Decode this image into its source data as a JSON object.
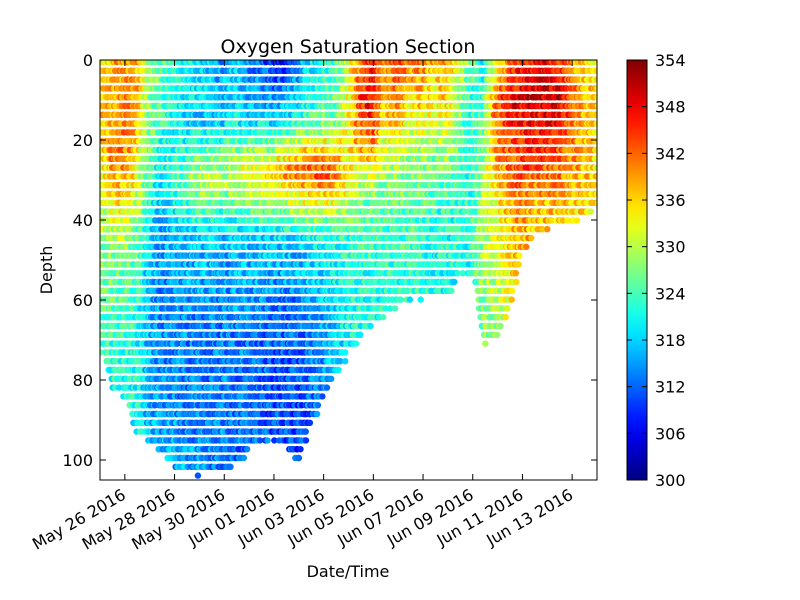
{
  "chart_data": {
    "type": "scatter",
    "title": "Oxygen Saturation Section",
    "xlabel": "Date/Time",
    "ylabel": "Depth",
    "x_axis": {
      "kind": "date",
      "range": [
        "2016-05-25",
        "2016-06-14"
      ],
      "ticks": [
        {
          "date": "2016-05-26",
          "label": "May 26 2016"
        },
        {
          "date": "2016-05-28",
          "label": "May 28 2016"
        },
        {
          "date": "2016-05-30",
          "label": "May 30 2016"
        },
        {
          "date": "2016-06-01",
          "label": "Jun 01 2016"
        },
        {
          "date": "2016-06-03",
          "label": "Jun 03 2016"
        },
        {
          "date": "2016-06-05",
          "label": "Jun 05 2016"
        },
        {
          "date": "2016-06-07",
          "label": "Jun 07 2016"
        },
        {
          "date": "2016-06-09",
          "label": "Jun 09 2016"
        },
        {
          "date": "2016-06-11",
          "label": "Jun 11 2016"
        },
        {
          "date": "2016-06-13",
          "label": "Jun 13 2016"
        }
      ]
    },
    "y_axis": {
      "inverted": true,
      "range": [
        0,
        105
      ],
      "ticks": [
        0,
        20,
        40,
        60,
        80,
        100
      ]
    },
    "colorbar": {
      "colormap": "jet",
      "range": [
        300,
        354
      ],
      "ticks": [
        300,
        306,
        312,
        318,
        324,
        330,
        336,
        342,
        348,
        354
      ]
    },
    "grid": false,
    "legend": "none",
    "profiles": [
      {
        "date": "2016-05-25T00:00",
        "max_depth": 73,
        "o2": [
          [
            0,
            334
          ],
          [
            10,
            336
          ],
          [
            20,
            335
          ],
          [
            35,
            330
          ],
          [
            55,
            326
          ],
          [
            73,
            325
          ]
        ]
      },
      {
        "date": "2016-05-25T12:00",
        "max_depth": 82,
        "o2": [
          [
            0,
            338
          ],
          [
            10,
            338
          ],
          [
            25,
            340
          ],
          [
            30,
            336
          ],
          [
            45,
            328
          ],
          [
            65,
            324
          ],
          [
            82,
            322
          ]
        ]
      },
      {
        "date": "2016-05-26T00:00",
        "max_depth": 85,
        "o2": [
          [
            0,
            339
          ],
          [
            10,
            340
          ],
          [
            25,
            341
          ],
          [
            35,
            336
          ],
          [
            50,
            326
          ],
          [
            70,
            323
          ],
          [
            85,
            322
          ]
        ]
      },
      {
        "date": "2016-05-26T12:00",
        "max_depth": 93,
        "o2": [
          [
            0,
            338
          ],
          [
            10,
            339
          ],
          [
            20,
            338
          ],
          [
            30,
            333
          ],
          [
            45,
            326
          ],
          [
            70,
            322
          ],
          [
            93,
            321
          ]
        ]
      },
      {
        "date": "2016-05-27T00:00",
        "max_depth": 98,
        "o2": [
          [
            0,
            330
          ],
          [
            15,
            327
          ],
          [
            25,
            326
          ],
          [
            40,
            320
          ],
          [
            60,
            316
          ],
          [
            80,
            316
          ],
          [
            98,
            317
          ]
        ]
      },
      {
        "date": "2016-05-27T12:00",
        "max_depth": 100,
        "o2": [
          [
            0,
            326
          ],
          [
            15,
            324
          ],
          [
            25,
            320
          ],
          [
            40,
            316
          ],
          [
            60,
            314
          ],
          [
            80,
            314
          ],
          [
            100,
            316
          ]
        ]
      },
      {
        "date": "2016-05-28T00:00",
        "max_depth": 102,
        "o2": [
          [
            0,
            324
          ],
          [
            15,
            320
          ],
          [
            30,
            324
          ],
          [
            45,
            316
          ],
          [
            65,
            314
          ],
          [
            85,
            314
          ],
          [
            102,
            316
          ]
        ]
      },
      {
        "date": "2016-05-28T12:00",
        "max_depth": 104,
        "o2": [
          [
            0,
            322
          ],
          [
            15,
            318
          ],
          [
            30,
            326
          ],
          [
            45,
            316
          ],
          [
            65,
            314
          ],
          [
            85,
            313
          ],
          [
            104,
            316
          ]
        ]
      },
      {
        "date": "2016-05-29T00:00",
        "max_depth": 104,
        "o2": [
          [
            0,
            320
          ],
          [
            15,
            318
          ],
          [
            30,
            330
          ],
          [
            45,
            318
          ],
          [
            65,
            314
          ],
          [
            85,
            313
          ],
          [
            104,
            315
          ]
        ]
      },
      {
        "date": "2016-05-29T12:00",
        "max_depth": 104,
        "o2": [
          [
            0,
            318
          ],
          [
            15,
            318
          ],
          [
            30,
            332
          ],
          [
            45,
            318
          ],
          [
            65,
            313
          ],
          [
            85,
            313
          ],
          [
            104,
            314
          ]
        ]
      },
      {
        "date": "2016-05-30T00:00",
        "max_depth": 104,
        "o2": [
          [
            0,
            314
          ],
          [
            15,
            318
          ],
          [
            30,
            330
          ],
          [
            45,
            316
          ],
          [
            65,
            314
          ],
          [
            85,
            313
          ],
          [
            104,
            314
          ]
        ]
      },
      {
        "date": "2016-05-30T12:00",
        "max_depth": 102,
        "o2": [
          [
            0,
            318
          ],
          [
            15,
            320
          ],
          [
            28,
            332
          ],
          [
            45,
            318
          ],
          [
            65,
            314
          ],
          [
            85,
            313
          ],
          [
            102,
            313
          ]
        ]
      },
      {
        "date": "2016-05-31T00:00",
        "max_depth": 98,
        "o2": [
          [
            0,
            314
          ],
          [
            15,
            318
          ],
          [
            28,
            334
          ],
          [
            45,
            318
          ],
          [
            65,
            314
          ],
          [
            85,
            312
          ],
          [
            98,
            312
          ]
        ]
      },
      {
        "date": "2016-05-31T12:00",
        "max_depth": 97,
        "o2": [
          [
            0,
            312
          ],
          [
            15,
            318
          ],
          [
            28,
            336
          ],
          [
            45,
            318
          ],
          [
            65,
            313
          ],
          [
            85,
            312
          ],
          [
            97,
            312
          ]
        ]
      },
      {
        "date": "2016-06-01T00:00",
        "max_depth": 96,
        "o2": [
          [
            0,
            308
          ],
          [
            15,
            318
          ],
          [
            28,
            336
          ],
          [
            45,
            318
          ],
          [
            65,
            312
          ],
          [
            85,
            311
          ],
          [
            96,
            311
          ]
        ]
      },
      {
        "date": "2016-06-01T12:00",
        "max_depth": 98,
        "o2": [
          [
            0,
            308
          ],
          [
            15,
            320
          ],
          [
            28,
            340
          ],
          [
            45,
            318
          ],
          [
            65,
            312
          ],
          [
            85,
            311
          ],
          [
            98,
            310
          ]
        ]
      },
      {
        "date": "2016-06-02T00:00",
        "max_depth": 102,
        "o2": [
          [
            0,
            312
          ],
          [
            15,
            322
          ],
          [
            28,
            342
          ],
          [
            45,
            318
          ],
          [
            65,
            312
          ],
          [
            85,
            311
          ],
          [
            102,
            309
          ]
        ]
      },
      {
        "date": "2016-06-02T12:00",
        "max_depth": 92,
        "o2": [
          [
            0,
            318
          ],
          [
            15,
            324
          ],
          [
            28,
            344
          ],
          [
            45,
            320
          ],
          [
            65,
            314
          ],
          [
            92,
            312
          ]
        ]
      },
      {
        "date": "2016-06-03T00:00",
        "max_depth": 86,
        "o2": [
          [
            0,
            320
          ],
          [
            15,
            326
          ],
          [
            28,
            344
          ],
          [
            45,
            320
          ],
          [
            65,
            316
          ],
          [
            86,
            314
          ]
        ]
      },
      {
        "date": "2016-06-03T12:00",
        "max_depth": 80,
        "o2": [
          [
            0,
            324
          ],
          [
            15,
            326
          ],
          [
            28,
            342
          ],
          [
            45,
            322
          ],
          [
            65,
            318
          ],
          [
            80,
            316
          ]
        ]
      },
      {
        "date": "2016-06-04T00:00",
        "max_depth": 74,
        "o2": [
          [
            0,
            330
          ],
          [
            15,
            332
          ],
          [
            30,
            336
          ],
          [
            45,
            322
          ],
          [
            74,
            320
          ]
        ]
      },
      {
        "date": "2016-06-04T12:00",
        "max_depth": 70,
        "o2": [
          [
            0,
            340
          ],
          [
            10,
            344
          ],
          [
            20,
            340
          ],
          [
            35,
            326
          ],
          [
            55,
            322
          ],
          [
            70,
            322
          ]
        ]
      },
      {
        "date": "2016-06-05T00:00",
        "max_depth": 68,
        "o2": [
          [
            0,
            346
          ],
          [
            10,
            348
          ],
          [
            20,
            342
          ],
          [
            35,
            326
          ],
          [
            55,
            322
          ],
          [
            68,
            322
          ]
        ]
      },
      {
        "date": "2016-06-05T12:00",
        "max_depth": 64,
        "o2": [
          [
            0,
            340
          ],
          [
            12,
            336
          ],
          [
            25,
            330
          ],
          [
            40,
            324
          ],
          [
            64,
            322
          ]
        ]
      },
      {
        "date": "2016-06-06T00:00",
        "max_depth": 62,
        "o2": [
          [
            0,
            344
          ],
          [
            12,
            340
          ],
          [
            25,
            330
          ],
          [
            40,
            324
          ],
          [
            62,
            322
          ]
        ]
      },
      {
        "date": "2016-06-06T12:00",
        "max_depth": 60,
        "o2": [
          [
            0,
            340
          ],
          [
            12,
            334
          ],
          [
            25,
            328
          ],
          [
            40,
            324
          ],
          [
            60,
            322
          ]
        ]
      },
      {
        "date": "2016-06-07T00:00",
        "max_depth": 60,
        "o2": [
          [
            0,
            342
          ],
          [
            12,
            336
          ],
          [
            25,
            328
          ],
          [
            40,
            324
          ],
          [
            60,
            322
          ]
        ]
      },
      {
        "date": "2016-06-07T12:00",
        "max_depth": 60,
        "o2": [
          [
            0,
            336
          ],
          [
            12,
            332
          ],
          [
            25,
            326
          ],
          [
            40,
            322
          ],
          [
            60,
            321
          ]
        ]
      },
      {
        "date": "2016-06-08T00:00",
        "max_depth": 60,
        "o2": [
          [
            0,
            340
          ],
          [
            12,
            336
          ],
          [
            25,
            328
          ],
          [
            40,
            322
          ],
          [
            60,
            321
          ]
        ]
      },
      {
        "date": "2016-06-08T12:00",
        "max_depth": 54,
        "o2": [
          [
            0,
            332
          ],
          [
            12,
            328
          ],
          [
            25,
            325
          ],
          [
            40,
            322
          ],
          [
            54,
            322
          ]
        ]
      },
      {
        "date": "2016-06-09T00:00",
        "max_depth": 54,
        "o2": [
          [
            0,
            326
          ],
          [
            12,
            322
          ],
          [
            25,
            322
          ],
          [
            40,
            322
          ],
          [
            54,
            322
          ]
        ]
      },
      {
        "date": "2016-06-09T12:00",
        "max_depth": 72,
        "o2": [
          [
            0,
            320
          ],
          [
            12,
            324
          ],
          [
            25,
            328
          ],
          [
            40,
            330
          ],
          [
            55,
            328
          ],
          [
            72,
            326
          ]
        ]
      },
      {
        "date": "2016-06-10T00:00",
        "max_depth": 70,
        "o2": [
          [
            0,
            330
          ],
          [
            10,
            344
          ],
          [
            25,
            338
          ],
          [
            40,
            332
          ],
          [
            55,
            330
          ],
          [
            70,
            328
          ]
        ]
      },
      {
        "date": "2016-06-10T12:00",
        "max_depth": 64,
        "o2": [
          [
            0,
            340
          ],
          [
            10,
            348
          ],
          [
            25,
            342
          ],
          [
            40,
            336
          ],
          [
            55,
            334
          ],
          [
            64,
            332
          ]
        ]
      },
      {
        "date": "2016-06-11T00:00",
        "max_depth": 50,
        "o2": [
          [
            0,
            346
          ],
          [
            10,
            348
          ],
          [
            25,
            344
          ],
          [
            40,
            340
          ],
          [
            50,
            338
          ]
        ]
      },
      {
        "date": "2016-06-11T12:00",
        "max_depth": 44,
        "o2": [
          [
            0,
            346
          ],
          [
            10,
            350
          ],
          [
            25,
            344
          ],
          [
            35,
            338
          ],
          [
            44,
            336
          ]
        ]
      },
      {
        "date": "2016-06-12T00:00",
        "max_depth": 43,
        "o2": [
          [
            0,
            348
          ],
          [
            10,
            350
          ],
          [
            25,
            344
          ],
          [
            35,
            338
          ],
          [
            43,
            336
          ]
        ]
      },
      {
        "date": "2016-06-12T12:00",
        "max_depth": 42,
        "o2": [
          [
            0,
            346
          ],
          [
            10,
            350
          ],
          [
            25,
            342
          ],
          [
            35,
            338
          ],
          [
            42,
            336
          ]
        ]
      },
      {
        "date": "2016-06-13T00:00",
        "max_depth": 42,
        "o2": [
          [
            0,
            340
          ],
          [
            10,
            344
          ],
          [
            25,
            340
          ],
          [
            35,
            336
          ],
          [
            42,
            335
          ]
        ]
      },
      {
        "date": "2016-06-13T12:00",
        "max_depth": 40,
        "o2": [
          [
            0,
            336
          ],
          [
            10,
            338
          ],
          [
            25,
            338
          ],
          [
            35,
            336
          ],
          [
            40,
            335
          ]
        ]
      },
      {
        "date": "2016-06-14T00:00",
        "max_depth": 38,
        "o2": [
          [
            0,
            334
          ],
          [
            10,
            336
          ],
          [
            25,
            336
          ],
          [
            38,
            335
          ]
        ]
      }
    ]
  }
}
